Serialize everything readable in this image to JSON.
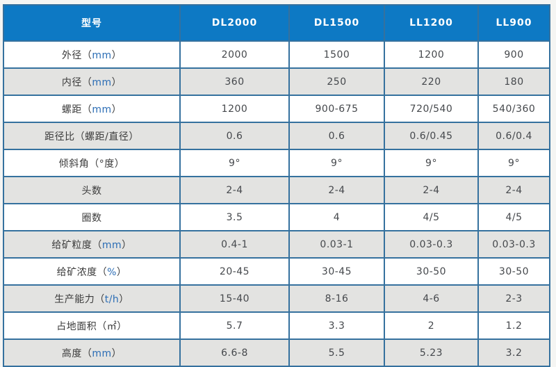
{
  "colors": {
    "page_bg": "#f5f5f3",
    "header_bg": "#0d79c4",
    "header_text": "#ffffff",
    "header_divider": "#0e5f9f",
    "border_color": "#35719e",
    "alt_row_bg": "#e3e3e1",
    "label_text": "#3b3b3b",
    "value_text": "#45484c",
    "latin_accent": "#2b6db5"
  },
  "chart_data": {
    "type": "table",
    "header": {
      "model_label": "型号",
      "columns": [
        "DL2000",
        "DL1500",
        "LL1200",
        "LL900"
      ]
    },
    "rows": [
      {
        "label": "外径",
        "unit_latin": "mm",
        "values": [
          "2000",
          "1500",
          "1200",
          "900"
        ]
      },
      {
        "label": "内径",
        "unit_latin": "mm",
        "values": [
          "360",
          "250",
          "220",
          "180"
        ]
      },
      {
        "label": "螺距",
        "unit_latin": "mm",
        "values": [
          "1200",
          "900-675",
          "720/540",
          "540/360"
        ]
      },
      {
        "label": "距径比",
        "unit_cn": "螺距/直径",
        "values": [
          "0.6",
          "0.6",
          "0.6/0.45",
          "0.6/0.4"
        ]
      },
      {
        "label": "倾斜角",
        "unit_cn": "°度",
        "values": [
          "9°",
          "9°",
          "9°",
          "9°"
        ]
      },
      {
        "label": "头数",
        "values": [
          "2-4",
          "2-4",
          "2-4",
          "2-4"
        ]
      },
      {
        "label": "圈数",
        "values": [
          "3.5",
          "4",
          "4/5",
          "4/5"
        ]
      },
      {
        "label": "给矿粒度",
        "unit_latin": "mm",
        "values": [
          "0.4-1",
          "0.03-1",
          "0.03-0.3",
          "0.03-0.3"
        ]
      },
      {
        "label": "给矿浓度",
        "unit_latin": "%",
        "values": [
          "20-45",
          "30-45",
          "30-50",
          "30-50"
        ]
      },
      {
        "label": "生产能力",
        "unit_latin": "t/h",
        "values": [
          "15-40",
          "8-16",
          "4-6",
          "2-3"
        ]
      },
      {
        "label": "占地面积",
        "unit_cn": "㎡",
        "values": [
          "5.7",
          "3.3",
          "2",
          "1.2"
        ]
      },
      {
        "label": "高度",
        "unit_latin": "mm",
        "values": [
          "6.6-8",
          "5.5",
          "5.23",
          "3.2"
        ]
      }
    ],
    "paren_open": "（",
    "paren_close": "）"
  }
}
